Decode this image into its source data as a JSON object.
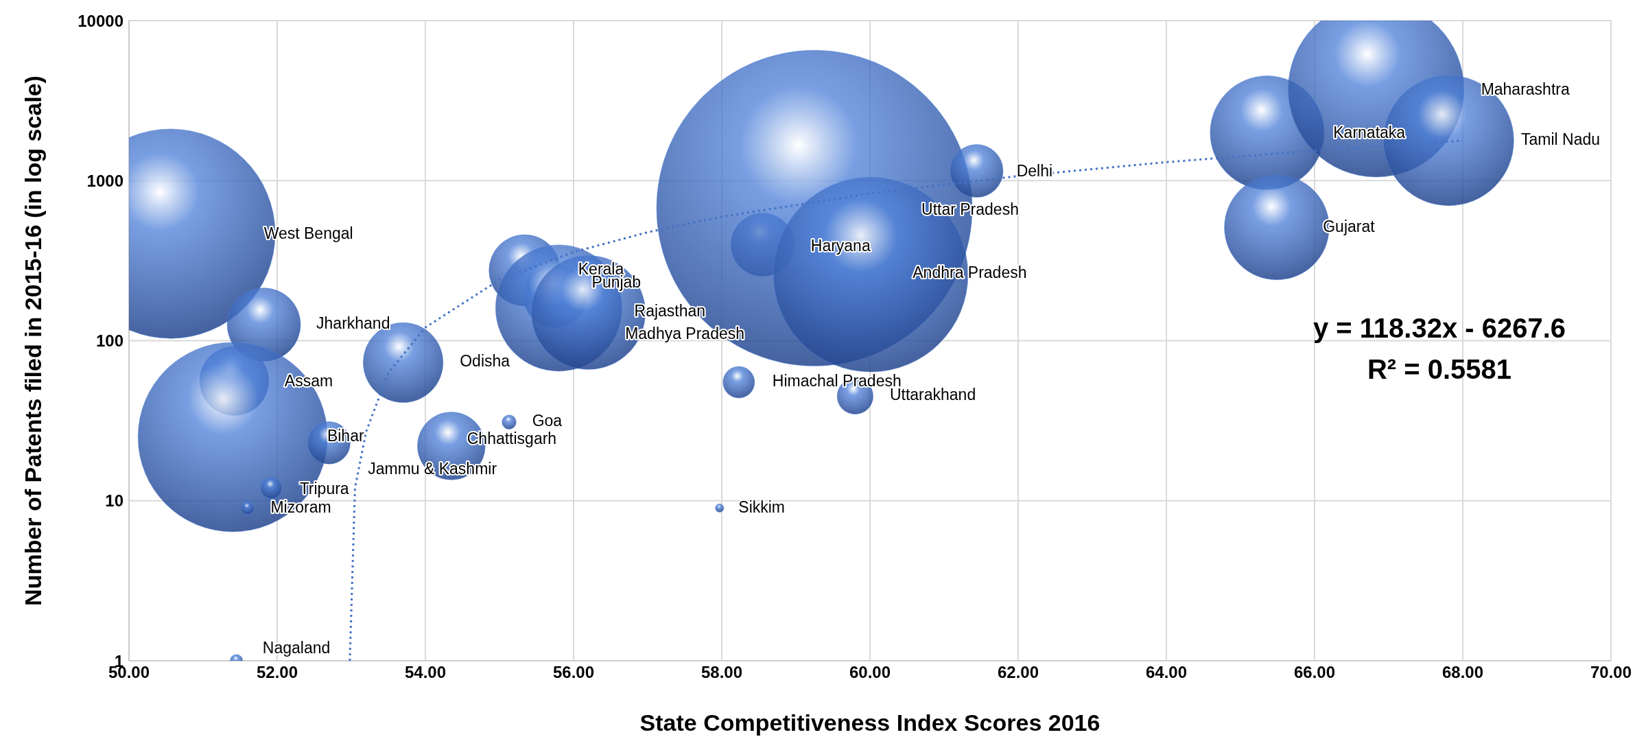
{
  "chart_data": {
    "type": "bubble",
    "xlabel": "State Competitiveness Index Scores 2016",
    "ylabel": "Number of Patents filed in 2015-16 (in log scale)",
    "xlim": [
      50,
      70
    ],
    "xticks": [
      {
        "value": 50,
        "label": "50.00"
      },
      {
        "value": 52,
        "label": "52.00"
      },
      {
        "value": 54,
        "label": "54.00"
      },
      {
        "value": 56,
        "label": "56.00"
      },
      {
        "value": 58,
        "label": "58.00"
      },
      {
        "value": 60,
        "label": "60.00"
      },
      {
        "value": 62,
        "label": "62.00"
      },
      {
        "value": 64,
        "label": "64.00"
      },
      {
        "value": 66,
        "label": "66.00"
      },
      {
        "value": 68,
        "label": "68.00"
      },
      {
        "value": 70,
        "label": "70.00"
      }
    ],
    "ylim": [
      1,
      10000
    ],
    "yticks": [
      1,
      10,
      100,
      1000,
      10000
    ],
    "log": "y",
    "grid": true,
    "legend": false,
    "annotations": [
      "y = 118.32x - 6267.6",
      "R² = 0.5581"
    ],
    "series": [
      {
        "type": "bubble",
        "color": "#4f81d9",
        "x": [
          50.56,
          51.82,
          51.42,
          51.4,
          52.7,
          54.35,
          51.92,
          51.6,
          51.45,
          55.13,
          57.97,
          53.7,
          55.34,
          55.75,
          55.8,
          56.2,
          58.55,
          59.25,
          60.01,
          58.23,
          59.8,
          61.44,
          65.36,
          65.49,
          66.83,
          67.81
        ],
        "values": [
          466,
          126,
          56,
          25,
          23,
          22,
          12,
          9,
          1,
          31,
          9,
          73,
          275,
          190,
          160,
          150,
          398,
          673,
          259,
          55,
          45,
          1150,
          1990,
          510,
          3730,
          1780
        ],
        "sizes": [
          0.44,
          0.054,
          0.048,
          0.36,
          0.018,
          0.046,
          0.0044,
          0.0016,
          0.0016,
          0.002,
          0.0007,
          0.064,
          0.051,
          0.04,
          0.16,
          0.13,
          0.04,
          1,
          0.38,
          0.01,
          0.013,
          0.028,
          0.13,
          0.11,
          0.31,
          0.17
        ],
        "value_labels": [
          "West Bengal",
          "Jharkhand",
          "Assam",
          "Bihar",
          "Jammu & Kashmir",
          "Chhattisgarh",
          "Tripura",
          "Mizoram",
          "Nagaland",
          "Goa",
          "Sikkim",
          "Odisha",
          "Kerala",
          "Punjab",
          "Rajasthan",
          "Madhya Pradesh",
          "Haryana",
          "Uttar Pradesh",
          "Andhra Pradesh",
          "Himachal Pradesh",
          "Uttarakhand",
          "Delhi",
          "Karnataka",
          "Gujarat",
          "Maharashtra",
          "Tamil Nadu"
        ]
      },
      {
        "type": "line",
        "color": "#4472c4",
        "line_style": "dotted",
        "marker": "none",
        "x": [
          52.98,
          53.05,
          53.2,
          53.5,
          54,
          55,
          56,
          57,
          58,
          60,
          62,
          64,
          66,
          68
        ],
        "values": [
          1,
          12,
          27,
          63,
          121,
          240,
          358,
          476,
          595,
          831,
          1068,
          1304,
          1541,
          1778
        ]
      }
    ]
  }
}
